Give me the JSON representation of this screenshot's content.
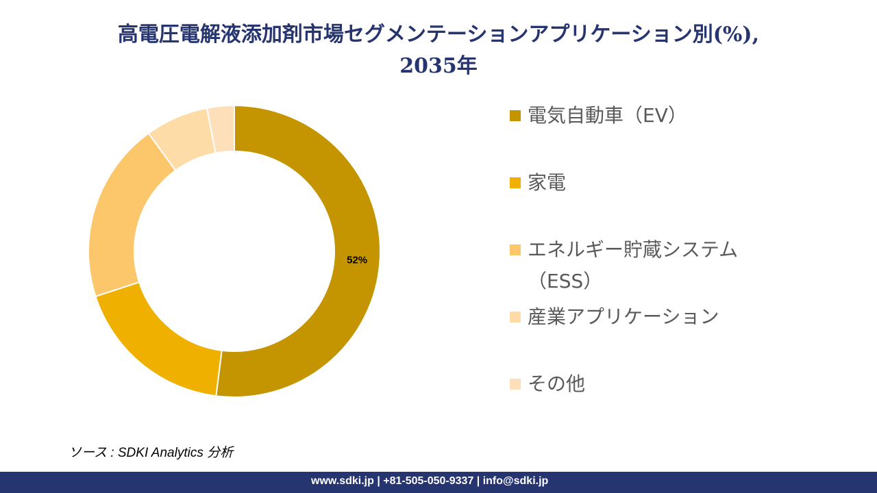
{
  "title_line1": "高電圧電解液添加剤市場セグメンテーションアプリケーション別(%),",
  "title_line2": "2035年",
  "chart_data": {
    "type": "pie",
    "donut": true,
    "title": "高電圧電解液添加剤市場セグメンテーションアプリケーション別(%), 2035年",
    "categories": [
      "電気自動車（EV）",
      "家電",
      "エネルギー貯蔵システム（ESS）",
      "産業アプリケーション",
      "その他"
    ],
    "values": [
      52,
      18,
      20,
      7,
      3
    ],
    "colors": [
      "#C49500",
      "#F0B000",
      "#FCC76A",
      "#FDDCA8",
      "#FDE0BA"
    ],
    "data_labels": [
      "52%",
      "",
      "",
      "",
      ""
    ],
    "legend_position": "right"
  },
  "legend": [
    {
      "label": "電気自動車（EV）"
    },
    {
      "label": "家電"
    },
    {
      "label": "エネルギー貯蔵システム（ESS）"
    },
    {
      "label": "産業アプリケーション"
    },
    {
      "label": "その他"
    }
  ],
  "source": "ソース : SDKI Analytics  分析",
  "footer": "www.sdki.jp | +81-505-050-9337 | info@sdki.jp"
}
